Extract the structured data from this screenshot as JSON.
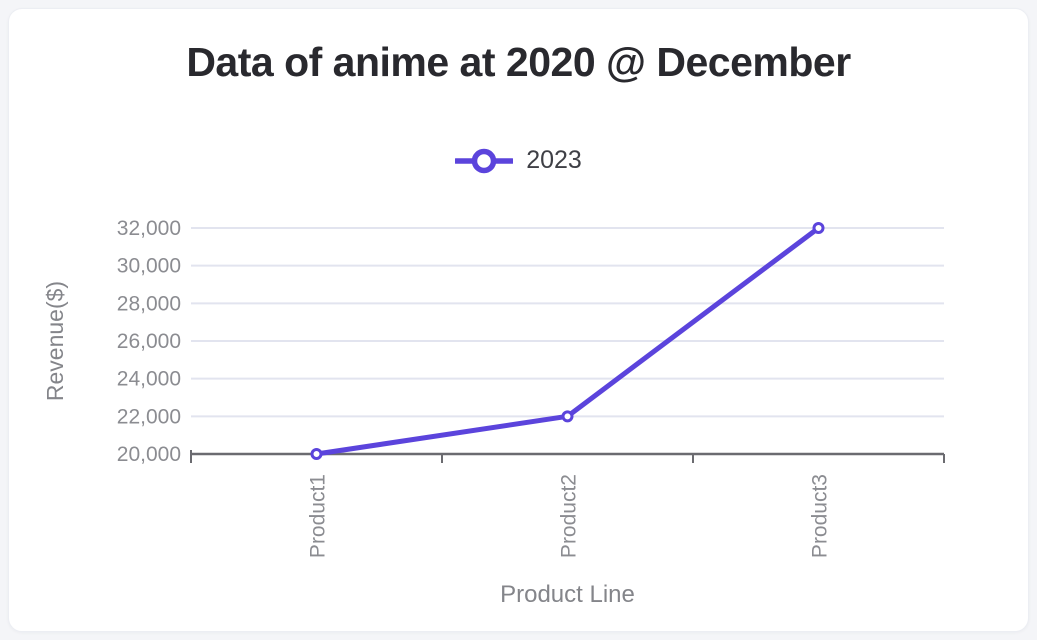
{
  "page": {
    "background": "#f4f5f8",
    "card_background": "#ffffff"
  },
  "chart_data": {
    "type": "line",
    "title": "Data of anime at 2020 @ December",
    "categories": [
      "Product1",
      "Product2",
      "Product3"
    ],
    "series": [
      {
        "name": "2023",
        "values": [
          20000,
          22000,
          32000
        ]
      }
    ],
    "xlabel": "Product Line",
    "ylabel": "Revenue($)",
    "ylim": [
      20000,
      32000
    ],
    "ytick_step": 2000,
    "ytick_labels": [
      "20,000",
      "22,000",
      "24,000",
      "26,000",
      "28,000",
      "30,000",
      "32,000"
    ],
    "grid": true,
    "legend_position": "top",
    "colors": {
      "line": "#5b44dc",
      "marker_fill": "#ffffff",
      "grid": "#e2e4ef",
      "axis": "#6b6b70",
      "tick_text": "#8b8c91",
      "axis_title_text": "#84858a",
      "title_text": "#29292e",
      "legend_text": "#3f4046"
    }
  }
}
